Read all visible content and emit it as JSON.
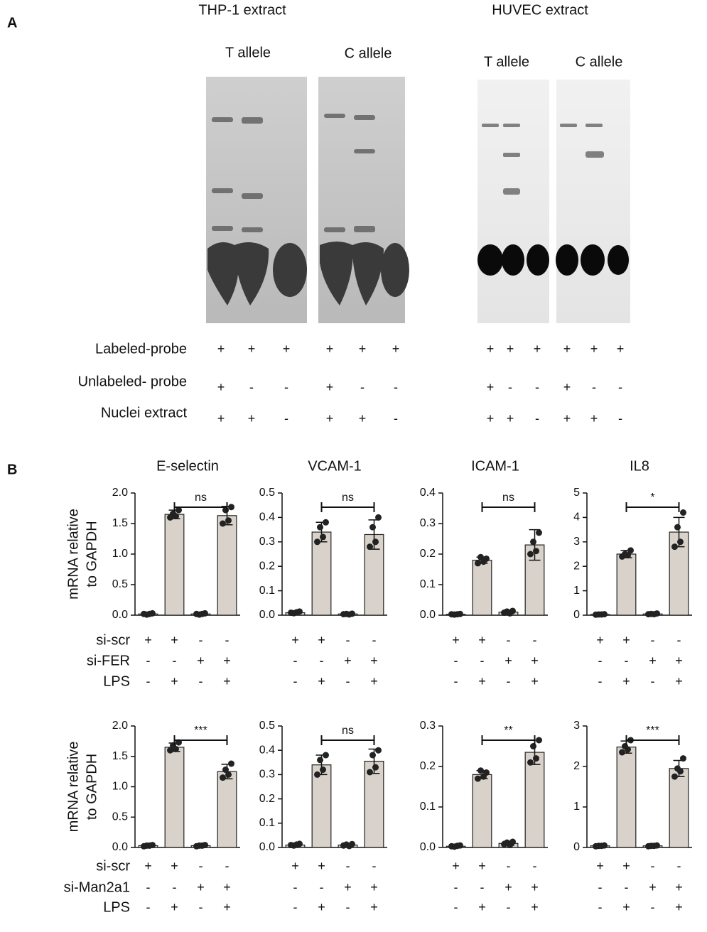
{
  "panel_a": {
    "label": "A",
    "extracts": [
      {
        "title": "THP-1 extract",
        "alleles": [
          "T allele",
          "C allele"
        ]
      },
      {
        "title": "HUVEC extract",
        "alleles": [
          "T allele",
          "C allele"
        ]
      }
    ],
    "rows": [
      {
        "label": "Labeled-probe",
        "signs": [
          "+",
          "+",
          "+",
          "+",
          "+",
          "+",
          "+",
          "+",
          "+",
          "+",
          "+",
          "+"
        ]
      },
      {
        "label": "Unlabeled- probe",
        "signs": [
          "+",
          "-",
          "-",
          "+",
          "-",
          "-",
          "+",
          "-",
          "-",
          "+",
          "-",
          "-"
        ]
      },
      {
        "label": "Nuclei extract",
        "signs": [
          "+",
          "+",
          "-",
          "+",
          "+",
          "-",
          "+",
          "+",
          "-",
          "+",
          "+",
          "-"
        ]
      }
    ]
  },
  "panel_b": {
    "label": "B",
    "condition_rows": [
      [
        "si-scr",
        "si-FER",
        "LPS"
      ],
      [
        "si-scr",
        "si-Man2a1",
        "LPS"
      ]
    ]
  },
  "chart_data": [
    {
      "type": "bar",
      "title": "E-selectin",
      "ylabel": [
        "mRNA relative",
        "to GAPDH"
      ],
      "color": "#d9d2ca",
      "values": [
        0.02,
        1.65,
        0.02,
        1.63
      ],
      "errors": [
        0.01,
        0.07,
        0.01,
        0.15
      ],
      "points": [
        [
          0.02,
          0.03,
          0.01,
          0.02
        ],
        [
          1.6,
          1.72,
          1.66,
          1.62
        ],
        [
          0.02,
          0.03,
          0.01,
          0.02
        ],
        [
          1.5,
          1.77,
          1.72,
          1.55
        ]
      ],
      "ylim": [
        0,
        2
      ],
      "yticks": [
        {
          "value": 0,
          "label": "0.0"
        },
        0.5,
        {
          "value": 1,
          "label": "1.0"
        },
        1.5,
        {
          "value": 2,
          "label": "2.0"
        }
      ],
      "significance": "ns",
      "conditions": [
        [
          "+",
          "+",
          "-",
          "-"
        ],
        [
          "-",
          "-",
          "+",
          "+"
        ],
        [
          "-",
          "+",
          "-",
          "+"
        ]
      ]
    },
    {
      "type": "bar",
      "title": "VCAM-1",
      "color": "#d9d2ca",
      "values": [
        0.01,
        0.34,
        0.005,
        0.33
      ],
      "errors": [
        0.005,
        0.04,
        0.003,
        0.06
      ],
      "points": [
        [
          0.01,
          0.015,
          0.008,
          0.012
        ],
        [
          0.3,
          0.38,
          0.36,
          0.32
        ],
        [
          0.004,
          0.006,
          0.005,
          0.003
        ],
        [
          0.28,
          0.4,
          0.36,
          0.3
        ]
      ],
      "ylim": [
        0,
        0.5
      ],
      "yticks": [
        {
          "value": 0,
          "label": "0.0"
        },
        0.1,
        0.2,
        0.3,
        0.4,
        0.5
      ],
      "significance": "ns",
      "conditions": [
        [
          "+",
          "+",
          "-",
          "-"
        ],
        [
          "-",
          "-",
          "+",
          "+"
        ],
        [
          "-",
          "+",
          "-",
          "+"
        ]
      ]
    },
    {
      "type": "bar",
      "title": "ICAM-1",
      "color": "#d9d2ca",
      "values": [
        0.003,
        0.18,
        0.01,
        0.23
      ],
      "errors": [
        0.002,
        0.01,
        0.005,
        0.05
      ],
      "points": [
        [
          0.003,
          0.004,
          0.002,
          0.003
        ],
        [
          0.17,
          0.185,
          0.19,
          0.175
        ],
        [
          0.008,
          0.014,
          0.012,
          0.006
        ],
        [
          0.2,
          0.27,
          0.24,
          0.21
        ]
      ],
      "ylim": [
        0,
        0.4
      ],
      "yticks": [
        {
          "value": 0,
          "label": "0.0"
        },
        0.1,
        0.2,
        0.3,
        0.4
      ],
      "significance": "ns",
      "conditions": [
        [
          "+",
          "+",
          "-",
          "-"
        ],
        [
          "-",
          "-",
          "+",
          "+"
        ],
        [
          "-",
          "+",
          "-",
          "+"
        ]
      ]
    },
    {
      "type": "bar",
      "title": "IL8",
      "color": "#d9d2ca",
      "values": [
        0.03,
        2.5,
        0.05,
        3.4
      ],
      "errors": [
        0.02,
        0.15,
        0.03,
        0.6
      ],
      "points": [
        [
          0.02,
          0.04,
          0.03,
          0.03
        ],
        [
          2.4,
          2.65,
          2.5,
          2.45
        ],
        [
          0.04,
          0.07,
          0.05,
          0.04
        ],
        [
          2.8,
          4.2,
          3.6,
          3.0
        ]
      ],
      "ylim": [
        0,
        5
      ],
      "yticks": [
        0,
        1,
        2,
        3,
        4,
        5
      ],
      "significance": "*",
      "conditions": [
        [
          "+",
          "+",
          "-",
          "-"
        ],
        [
          "-",
          "-",
          "+",
          "+"
        ],
        [
          "-",
          "+",
          "-",
          "+"
        ]
      ]
    },
    {
      "type": "bar",
      "ylabel": [
        "mRNA relative",
        "to GAPDH"
      ],
      "color": "#d9d2ca",
      "values": [
        0.03,
        1.65,
        0.03,
        1.25
      ],
      "errors": [
        0.01,
        0.07,
        0.01,
        0.12
      ],
      "points": [
        [
          0.02,
          0.04,
          0.03,
          0.03
        ],
        [
          1.6,
          1.73,
          1.68,
          1.62
        ],
        [
          0.02,
          0.04,
          0.03,
          0.03
        ],
        [
          1.15,
          1.38,
          1.28,
          1.2
        ]
      ],
      "ylim": [
        0,
        2
      ],
      "yticks": [
        {
          "value": 0,
          "label": "0.0"
        },
        0.5,
        {
          "value": 1,
          "label": "1.0"
        },
        1.5,
        {
          "value": 2,
          "label": "2.0"
        }
      ],
      "significance": "***",
      "conditions": [
        [
          "+",
          "+",
          "-",
          "-"
        ],
        [
          "-",
          "-",
          "+",
          "+"
        ],
        [
          "-",
          "+",
          "-",
          "+"
        ]
      ]
    },
    {
      "type": "bar",
      "color": "#d9d2ca",
      "values": [
        0.01,
        0.34,
        0.01,
        0.355
      ],
      "errors": [
        0.005,
        0.04,
        0.005,
        0.05
      ],
      "points": [
        [
          0.01,
          0.015,
          0.008,
          0.012
        ],
        [
          0.3,
          0.38,
          0.36,
          0.32
        ],
        [
          0.008,
          0.014,
          0.012,
          0.006
        ],
        [
          0.31,
          0.4,
          0.38,
          0.33
        ]
      ],
      "ylim": [
        0,
        0.5
      ],
      "yticks": [
        {
          "value": 0,
          "label": "0.0"
        },
        0.1,
        0.2,
        0.3,
        0.4,
        0.5
      ],
      "significance": "ns",
      "conditions": [
        [
          "+",
          "+",
          "-",
          "-"
        ],
        [
          "-",
          "-",
          "+",
          "+"
        ],
        [
          "-",
          "+",
          "-",
          "+"
        ]
      ]
    },
    {
      "type": "bar",
      "color": "#d9d2ca",
      "values": [
        0.003,
        0.18,
        0.01,
        0.235
      ],
      "errors": [
        0.002,
        0.01,
        0.005,
        0.03
      ],
      "points": [
        [
          0.003,
          0.005,
          0.002,
          0.004
        ],
        [
          0.17,
          0.185,
          0.19,
          0.175
        ],
        [
          0.008,
          0.014,
          0.012,
          0.006
        ],
        [
          0.21,
          0.265,
          0.25,
          0.22
        ]
      ],
      "ylim": [
        0,
        0.3
      ],
      "yticks": [
        {
          "value": 0,
          "label": "0.0"
        },
        0.1,
        0.2,
        0.3
      ],
      "significance": "**",
      "conditions": [
        [
          "+",
          "+",
          "-",
          "-"
        ],
        [
          "-",
          "-",
          "+",
          "+"
        ],
        [
          "-",
          "+",
          "-",
          "+"
        ]
      ]
    },
    {
      "type": "bar",
      "color": "#d9d2ca",
      "values": [
        0.04,
        2.48,
        0.04,
        1.95
      ],
      "errors": [
        0.02,
        0.15,
        0.02,
        0.2
      ],
      "points": [
        [
          0.03,
          0.05,
          0.04,
          0.04
        ],
        [
          2.35,
          2.65,
          2.5,
          2.42
        ],
        [
          0.03,
          0.05,
          0.04,
          0.04
        ],
        [
          1.75,
          2.2,
          1.95,
          1.88
        ]
      ],
      "ylim": [
        0,
        3
      ],
      "yticks": [
        0,
        1,
        2,
        3
      ],
      "significance": "***",
      "conditions": [
        [
          "+",
          "+",
          "-",
          "-"
        ],
        [
          "-",
          "-",
          "+",
          "+"
        ],
        [
          "-",
          "+",
          "-",
          "+"
        ]
      ]
    }
  ]
}
